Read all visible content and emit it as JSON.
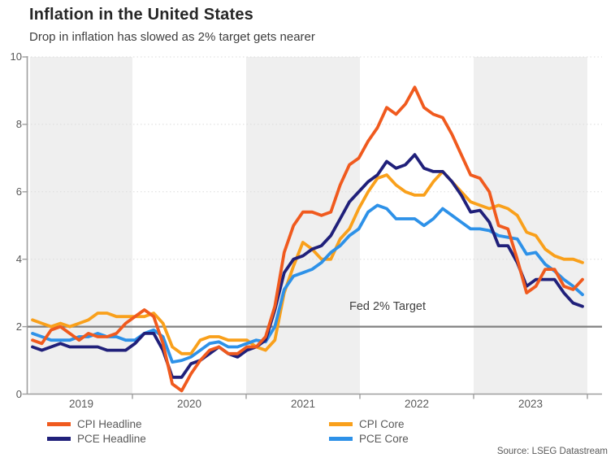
{
  "header": {
    "title": "Inflation in the United States",
    "subtitle": "Drop in inflation has slowed as 2% target gets nearer"
  },
  "source": "Source: LSEG Datastream",
  "colors": {
    "band": "#EFEFEF",
    "grid": "#DBDBDB",
    "axis": "#9E9E9E",
    "target_line": "#808080",
    "muted_text": "#595959"
  },
  "chart_data": {
    "type": "line",
    "title": "Inflation in the United States",
    "subtitle": "Drop in inflation has slowed as 2% target gets nearer",
    "frequency": "monthly",
    "x_start": "2019-01",
    "x_end": "2023-12",
    "x_tick_labels": [
      "2019",
      "2020",
      "2021",
      "2022",
      "2023"
    ],
    "ylim": [
      0,
      10
    ],
    "y_ticks": [
      0,
      2,
      4,
      6,
      8,
      10
    ],
    "grid": "horizontal-dotted",
    "shaded_year_bands": [
      "2019",
      "2021",
      "2023"
    ],
    "legend_position": "bottom",
    "target_line": {
      "label": "Fed 2% Target",
      "value": 2
    },
    "series": [
      {
        "name": "CPI Headline",
        "color": "#F05A1E",
        "values": [
          1.6,
          1.5,
          1.9,
          2.0,
          1.8,
          1.6,
          1.8,
          1.7,
          1.7,
          1.8,
          2.1,
          2.3,
          2.5,
          2.3,
          1.5,
          0.3,
          0.1,
          0.6,
          1.0,
          1.3,
          1.4,
          1.2,
          1.2,
          1.4,
          1.4,
          1.7,
          2.6,
          4.2,
          5.0,
          5.4,
          5.4,
          5.3,
          5.4,
          6.2,
          6.8,
          7.0,
          7.5,
          7.9,
          8.5,
          8.3,
          8.6,
          9.1,
          8.5,
          8.3,
          8.2,
          7.7,
          7.1,
          6.5,
          6.4,
          6.0,
          5.0,
          4.9,
          4.0,
          3.0,
          3.2,
          3.7,
          3.7,
          3.2,
          3.1,
          3.4
        ]
      },
      {
        "name": "PCE Headline",
        "color": "#20207A",
        "values": [
          1.4,
          1.3,
          1.4,
          1.5,
          1.4,
          1.4,
          1.4,
          1.4,
          1.3,
          1.3,
          1.3,
          1.5,
          1.8,
          1.8,
          1.3,
          0.5,
          0.5,
          0.9,
          1.0,
          1.2,
          1.4,
          1.2,
          1.1,
          1.3,
          1.4,
          1.6,
          2.5,
          3.6,
          4.0,
          4.1,
          4.3,
          4.4,
          4.7,
          5.2,
          5.7,
          6.0,
          6.3,
          6.5,
          6.9,
          6.7,
          6.8,
          7.1,
          6.7,
          6.6,
          6.6,
          6.3,
          5.9,
          5.4,
          5.45,
          5.1,
          4.4,
          4.4,
          3.9,
          3.2,
          3.4,
          3.4,
          3.4,
          3.0,
          2.7,
          2.6
        ]
      },
      {
        "name": "CPI Core",
        "color": "#F9A01B",
        "values": [
          2.2,
          2.1,
          2.0,
          2.1,
          2.0,
          2.1,
          2.2,
          2.4,
          2.4,
          2.3,
          2.3,
          2.3,
          2.3,
          2.4,
          2.1,
          1.4,
          1.2,
          1.2,
          1.6,
          1.7,
          1.7,
          1.6,
          1.6,
          1.6,
          1.4,
          1.3,
          1.6,
          3.0,
          3.8,
          4.5,
          4.3,
          4.0,
          4.0,
          4.6,
          4.9,
          5.5,
          6.0,
          6.4,
          6.5,
          6.2,
          6.0,
          5.9,
          5.9,
          6.3,
          6.6,
          6.3,
          6.0,
          5.7,
          5.6,
          5.5,
          5.6,
          5.5,
          5.3,
          4.8,
          4.7,
          4.3,
          4.1,
          4.0,
          4.0,
          3.9
        ]
      },
      {
        "name": "PCE Core",
        "color": "#2D91E8",
        "values": [
          1.8,
          1.7,
          1.6,
          1.6,
          1.6,
          1.7,
          1.7,
          1.8,
          1.7,
          1.7,
          1.6,
          1.6,
          1.8,
          1.9,
          1.7,
          0.95,
          1.0,
          1.1,
          1.3,
          1.5,
          1.55,
          1.4,
          1.4,
          1.5,
          1.6,
          1.55,
          2.0,
          3.1,
          3.5,
          3.6,
          3.7,
          3.9,
          4.2,
          4.4,
          4.7,
          4.9,
          5.4,
          5.6,
          5.5,
          5.2,
          5.2,
          5.2,
          5.0,
          5.2,
          5.5,
          5.3,
          5.1,
          4.9,
          4.9,
          4.85,
          4.7,
          4.65,
          4.6,
          4.15,
          4.2,
          3.85,
          3.65,
          3.4,
          3.2,
          2.95
        ]
      }
    ]
  },
  "legend": {
    "columns": [
      [
        "CPI Headline",
        "PCE Headline"
      ],
      [
        "CPI Core",
        "PCE Core"
      ]
    ]
  }
}
